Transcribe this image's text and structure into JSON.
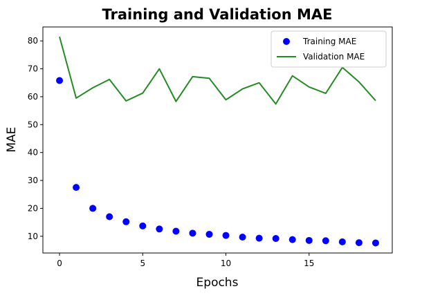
{
  "chart_data": {
    "type": "line",
    "title": "Training and Validation MAE",
    "xlabel": "Epochs",
    "ylabel": "MAE",
    "xlim": [
      -1,
      20
    ],
    "ylim": [
      4,
      85
    ],
    "xticks": [
      0,
      5,
      10,
      15
    ],
    "yticks": [
      10,
      20,
      30,
      40,
      50,
      60,
      70,
      80
    ],
    "grid": false,
    "legend_position": "top-right",
    "series": [
      {
        "name": "Training MAE",
        "style": "scatter",
        "color": "#0000ff",
        "x": [
          0,
          1,
          2,
          3,
          4,
          5,
          6,
          7,
          8,
          9,
          10,
          11,
          12,
          13,
          14,
          15,
          16,
          17,
          18,
          19
        ],
        "values": [
          65.8,
          27.5,
          20.0,
          17.0,
          15.2,
          13.7,
          12.6,
          11.8,
          11.1,
          10.7,
          10.3,
          9.7,
          9.3,
          9.2,
          8.8,
          8.5,
          8.4,
          8.0,
          7.7,
          7.6
        ]
      },
      {
        "name": "Validation MAE",
        "style": "line",
        "color": "#228b22",
        "x": [
          0,
          1,
          2,
          3,
          4,
          5,
          6,
          7,
          8,
          9,
          10,
          11,
          12,
          13,
          14,
          15,
          16,
          17,
          18,
          19
        ],
        "values": [
          81.5,
          59.5,
          63.2,
          66.2,
          58.5,
          61.3,
          70.0,
          58.3,
          67.2,
          66.6,
          58.9,
          62.8,
          65.0,
          57.4,
          67.5,
          63.5,
          61.2,
          70.5,
          65.3,
          58.6
        ]
      }
    ]
  }
}
